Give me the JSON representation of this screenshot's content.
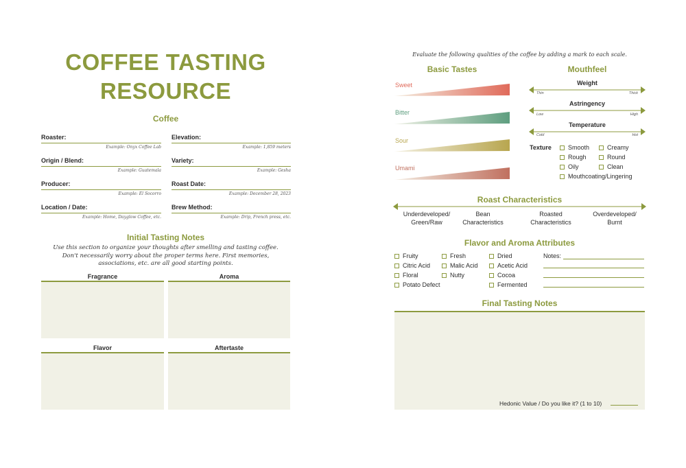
{
  "title_line1": "COFFEE TASTING",
  "title_line2": "RESOURCE",
  "coffee": {
    "heading": "Coffee",
    "fields": [
      {
        "label": "Roaster:",
        "example": "Example: Onyx Coffee Lab"
      },
      {
        "label": "Elevation:",
        "example": "Example: 1,859 meters"
      },
      {
        "label": "Origin / Blend:",
        "example": "Example: Guatemala"
      },
      {
        "label": "Variety:",
        "example": "Example: Gesha"
      },
      {
        "label": "Producer:",
        "example": "Example: El Socorro"
      },
      {
        "label": "Roast Date:",
        "example": "Example: December 28, 2023"
      },
      {
        "label": "Location / Date:",
        "example": "Example: Home, Dayglow Coffee, etc."
      },
      {
        "label": "Brew Method:",
        "example": "Example: Drip, French press, etc."
      }
    ]
  },
  "initial_notes": {
    "heading": "Initial Tasting Notes",
    "intro_line1": "Use this section to organize your thoughts after smelling and tasting coffee.",
    "intro_line2": "Don't necessarily worry about the proper terms here. First memories,",
    "intro_line3": "associations, etc. are all good starting points.",
    "boxes": [
      "Fragrance",
      "Aroma",
      "Flavor",
      "Aftertaste"
    ]
  },
  "instructions": "Evaluate the following qualities of the coffee by adding a mark to each scale.",
  "basic_tastes": {
    "heading": "Basic Tastes",
    "items": [
      {
        "label": "Sweet",
        "color": "#e06a5a"
      },
      {
        "label": "Bitter",
        "color": "#5e9e7f"
      },
      {
        "label": "Sour",
        "color": "#b8a64f"
      },
      {
        "label": "Umami",
        "color": "#c0705f"
      }
    ]
  },
  "mouthfeel": {
    "heading": "Mouthfeel",
    "scales": [
      {
        "label": "Weight",
        "low": "Thin",
        "high": "Thick"
      },
      {
        "label": "Astringency",
        "low": "Low",
        "high": "High"
      },
      {
        "label": "Temperature",
        "low": "Cold",
        "high": "Hot"
      }
    ],
    "texture_label": "Texture",
    "texture_options": [
      "Smooth",
      "Creamy",
      "Rough",
      "Round",
      "Oily",
      "Clean",
      "Mouthcoating/Lingering"
    ]
  },
  "roast": {
    "heading": "Roast Characteristics",
    "labels": [
      {
        "line1": "Underdeveloped/",
        "line2": "Green/Raw"
      },
      {
        "line1": "Bean",
        "line2": "Characteristics"
      },
      {
        "line1": "Roasted",
        "line2": "Characteristics"
      },
      {
        "line1": "Overdeveloped/",
        "line2": "Burnt"
      }
    ]
  },
  "flavor_aroma": {
    "heading": "Flavor and Aroma Attributes",
    "columns": [
      [
        "Fruity",
        "Citric Acid",
        "Floral",
        "Potato Defect"
      ],
      [
        "Fresh",
        "Malic Acid",
        "Nutty"
      ],
      [
        "Dried",
        "Acetic Acid",
        "Cocoa",
        "Fermented"
      ]
    ],
    "notes_label": "Notes:"
  },
  "final_notes": {
    "heading": "Final Tasting Notes",
    "hedonic_label": "Hedonic Value / Do you like it? (1 to 10)"
  }
}
